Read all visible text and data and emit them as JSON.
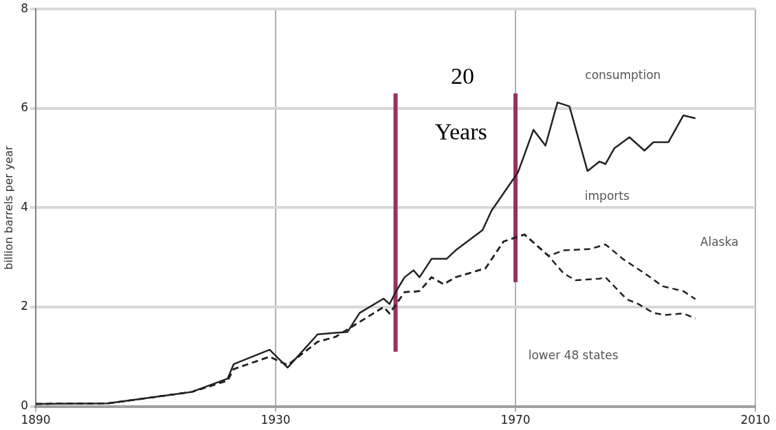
{
  "chart_data": {
    "type": "line",
    "ylabel": "billion barrels per year",
    "xlim": [
      1890,
      2010
    ],
    "xticks": [
      1890,
      1930,
      1970,
      2010
    ],
    "ylim": [
      0,
      8
    ],
    "yticks": [
      0,
      2,
      4,
      6,
      8
    ],
    "grid": true,
    "legend": false,
    "marker": "none",
    "series": [
      {
        "name": "consumption",
        "color": "#222222",
        "line_style": "solid",
        "x": [
          1890,
          1902,
          1916,
          1922,
          1923,
          1929,
          1932,
          1937,
          1940,
          1942,
          1944,
          1948,
          1949,
          1950,
          1951.5,
          1953,
          1954,
          1956,
          1958.5,
          1960,
          1964.5,
          1966,
          1970.4,
          1973,
          1975,
          1977,
          1979,
          1982,
          1984,
          1985,
          1986.5,
          1989,
          1991.5,
          1993,
          1995.5,
          1998,
          2000
        ],
        "values": [
          0.05,
          0.06,
          0.29,
          0.56,
          0.85,
          1.14,
          0.78,
          1.45,
          1.48,
          1.5,
          1.88,
          2.17,
          2.06,
          2.3,
          2.6,
          2.74,
          2.6,
          2.97,
          2.97,
          3.14,
          3.55,
          3.94,
          4.71,
          5.57,
          5.25,
          6.12,
          6.04,
          4.74,
          4.93,
          4.88,
          5.2,
          5.42,
          5.15,
          5.32,
          5.32,
          5.86,
          5.8
        ]
      },
      {
        "color": "#222222",
        "line_style": "dashed",
        "x": [
          1890,
          1902,
          1916,
          1922,
          1923,
          1929,
          1932,
          1937,
          1940,
          1944,
          1948,
          1949,
          1951.5,
          1954,
          1956,
          1958,
          1960,
          1965,
          1968,
          1971.5,
          1973,
          1975.5,
          1978,
          1982.5,
          1985,
          1988,
          1992,
          1994.5,
          1998,
          2000
        ],
        "values": [
          0.05,
          0.06,
          0.29,
          0.52,
          0.75,
          1.0,
          0.83,
          1.3,
          1.4,
          1.7,
          2.0,
          1.87,
          2.3,
          2.32,
          2.6,
          2.46,
          2.6,
          2.78,
          3.32,
          3.46,
          3.3,
          3.03,
          3.14,
          3.17,
          3.26,
          2.96,
          2.64,
          2.42,
          2.32,
          2.16
        ]
      },
      {
        "color": "#222222",
        "line_style": "dashed",
        "x": [
          1890,
          1902,
          1916,
          1922,
          1923,
          1929,
          1932,
          1937,
          1940,
          1944,
          1948,
          1949,
          1951.5,
          1954,
          1956,
          1958,
          1960,
          1965,
          1968,
          1971.5,
          1973,
          1975.5,
          1978,
          1980,
          1984,
          1985,
          1987,
          1988.5,
          1990.5,
          1993,
          1995,
          1998,
          2000
        ],
        "values": [
          0.05,
          0.06,
          0.29,
          0.52,
          0.75,
          1.0,
          0.83,
          1.3,
          1.4,
          1.7,
          2.0,
          1.87,
          2.3,
          2.32,
          2.6,
          2.46,
          2.6,
          2.78,
          3.32,
          3.46,
          3.3,
          3.03,
          2.68,
          2.54,
          2.57,
          2.6,
          2.35,
          2.16,
          2.06,
          1.88,
          1.84,
          1.87,
          1.77
        ]
      },
      {
        "color": "#9b3060",
        "line_style": "solid",
        "x": [
          1950,
          1950
        ],
        "values": [
          1.1,
          6.3
        ]
      },
      {
        "color": "#9b3060",
        "line_style": "solid",
        "x": [
          1970,
          1970
        ],
        "values": [
          2.5,
          6.3
        ]
      }
    ],
    "annotations": [
      "imports",
      "Alaska",
      "lower 48 states",
      "20",
      "Years"
    ]
  }
}
